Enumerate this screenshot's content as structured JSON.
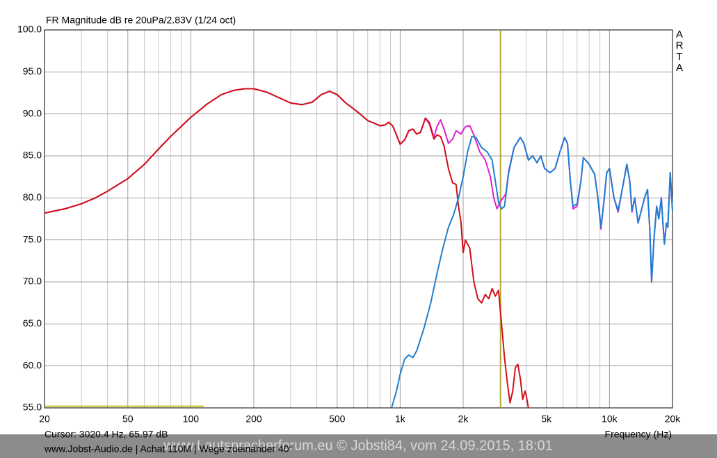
{
  "chart_data": {
    "type": "line",
    "title": "FR Magnitude dB re 20uPa/2.83V (1/24 oct)",
    "brand": "ARTA",
    "x_label": "Frequency (Hz)",
    "cursor": {
      "label": "Cursor: 3020.4 Hz, 65.97 dB",
      "x": 3020.4,
      "color": "#b0a020"
    },
    "footer": "www.Jobst-Audio.de | Achat 110M | Wege zueinander 40°",
    "watermark": "www.Lautsprecherforum.eu © Jobsti84, vom 24.09.2015, 18:01",
    "level_marker": {
      "x": [
        20,
        115
      ],
      "y": 55.2,
      "color": "#c8c020"
    },
    "xscale": "log",
    "grid": true,
    "xlim": [
      20,
      20000
    ],
    "ylim": [
      55,
      100
    ],
    "xticks": [
      20,
      50,
      100,
      200,
      500,
      {
        "value": 1000,
        "label": "1k"
      },
      {
        "value": 2000,
        "label": "2k"
      },
      {
        "value": 5000,
        "label": "5k"
      },
      {
        "value": 10000,
        "label": "10k"
      },
      {
        "value": 20000,
        "label": "20k"
      }
    ],
    "xminor": [
      30,
      40,
      60,
      70,
      80,
      90,
      300,
      400,
      600,
      700,
      800,
      900,
      3000,
      4000,
      6000,
      7000,
      8000,
      9000
    ],
    "yticks": [
      {
        "value": 100,
        "label": "100.0"
      },
      {
        "value": 95,
        "label": "95.0"
      },
      {
        "value": 90,
        "label": "90.0"
      },
      {
        "value": 85,
        "label": "85.0"
      },
      {
        "value": 80,
        "label": "80.0"
      },
      {
        "value": 75,
        "label": "75.0"
      },
      {
        "value": 70,
        "label": "70.0"
      },
      {
        "value": 65,
        "label": "65.0"
      },
      {
        "value": 60,
        "label": "60.0"
      },
      {
        "value": 55,
        "label": "55.0"
      }
    ],
    "series": [
      {
        "color": "#e020d0",
        "x": [
          20,
          25,
          30,
          35,
          40,
          50,
          60,
          70,
          80,
          100,
          120,
          140,
          160,
          180,
          200,
          230,
          260,
          300,
          340,
          380,
          420,
          460,
          500,
          550,
          600,
          650,
          700,
          750,
          800,
          850,
          880,
          920,
          960,
          1000,
          1050,
          1100,
          1150,
          1200,
          1250,
          1320,
          1380,
          1450,
          1500,
          1560,
          1620,
          1700,
          1780,
          1850,
          1950,
          2050,
          2150,
          2250,
          2400,
          2550,
          2700,
          2800,
          2900,
          3000,
          3100,
          3200,
          3300,
          3500,
          3750,
          3900,
          4100,
          4300,
          4500,
          4700,
          4900,
          5200,
          5500,
          5800,
          6100,
          6300,
          6500,
          6700,
          7000,
          7300,
          7500,
          8000,
          8500,
          8800,
          9100,
          9400,
          9700,
          10000,
          10500,
          11000,
          11500,
          12100,
          12500,
          12800,
          13200,
          13700,
          14200,
          14700,
          15200,
          15600,
          15900,
          16300,
          16800,
          17200,
          17700,
          18000,
          18300,
          18700,
          19000,
          19500,
          20000
        ],
        "values": [
          78.2,
          78.7,
          79.3,
          80.0,
          80.8,
          82.3,
          84.0,
          85.8,
          87.3,
          89.6,
          91.2,
          92.3,
          92.8,
          93.0,
          93.0,
          92.6,
          92.0,
          91.3,
          91.1,
          91.4,
          92.3,
          92.7,
          92.3,
          91.3,
          90.6,
          89.9,
          89.2,
          88.9,
          88.6,
          88.7,
          89.0,
          88.6,
          87.5,
          86.4,
          86.9,
          88.0,
          88.2,
          87.6,
          87.8,
          89.5,
          89.0,
          87.2,
          88.5,
          89.3,
          88.2,
          86.5,
          87.0,
          88.0,
          87.6,
          88.5,
          88.6,
          87.5,
          85.5,
          84.5,
          82.5,
          80.0,
          78.7,
          79.5,
          80.0,
          80.5,
          83.2,
          86.0,
          87.2,
          86.5,
          84.5,
          85.0,
          84.2,
          85.0,
          83.5,
          83.0,
          83.5,
          85.5,
          87.2,
          86.5,
          82.0,
          78.7,
          79.0,
          82.0,
          84.8,
          84.0,
          82.8,
          80.0,
          76.3,
          79.5,
          83.0,
          83.5,
          80.0,
          78.3,
          81.0,
          84.0,
          82.0,
          78.3,
          80.0,
          77.0,
          78.5,
          80.0,
          81.0,
          76.0,
          70.0,
          75.0,
          79.0,
          77.5,
          80.0,
          77.0,
          74.5,
          77.0,
          76.5,
          83.0,
          78.5
        ]
      },
      {
        "color": "#d0101a",
        "x": [
          20,
          25,
          30,
          35,
          40,
          50,
          60,
          70,
          80,
          100,
          120,
          140,
          160,
          180,
          200,
          230,
          260,
          300,
          340,
          380,
          420,
          460,
          500,
          550,
          600,
          650,
          700,
          750,
          800,
          850,
          880,
          920,
          960,
          1000,
          1050,
          1100,
          1150,
          1200,
          1250,
          1320,
          1380,
          1450,
          1500,
          1560,
          1620,
          1700,
          1780,
          1850,
          1900,
          1950,
          2000,
          2050,
          2150,
          2250,
          2350,
          2450,
          2550,
          2650,
          2750,
          2850,
          2950,
          3050,
          3150,
          3250,
          3350,
          3450,
          3550,
          3650,
          3750,
          3850,
          3950,
          4000,
          4100
        ],
        "values": [
          78.2,
          78.7,
          79.3,
          80.0,
          80.8,
          82.3,
          84.0,
          85.8,
          87.3,
          89.6,
          91.2,
          92.3,
          92.8,
          93.0,
          93.0,
          92.6,
          92.0,
          91.3,
          91.1,
          91.4,
          92.3,
          92.7,
          92.3,
          91.3,
          90.6,
          89.9,
          89.2,
          88.9,
          88.6,
          88.7,
          89.0,
          88.6,
          87.5,
          86.4,
          86.9,
          88.0,
          88.2,
          87.6,
          87.8,
          89.5,
          88.8,
          87.0,
          87.5,
          87.3,
          86.2,
          83.5,
          81.8,
          81.6,
          79.0,
          77.2,
          73.5,
          75.0,
          74.0,
          70.0,
          68.0,
          67.5,
          68.5,
          68.0,
          69.2,
          68.3,
          69.0,
          65.0,
          61.0,
          58.0,
          55.6,
          57.0,
          59.8,
          60.2,
          58.5,
          56.0,
          57.0,
          56.5,
          55.0
        ]
      },
      {
        "color": "#1f7fd0",
        "x": [
          910,
          960,
          1000,
          1050,
          1100,
          1150,
          1200,
          1300,
          1400,
          1500,
          1600,
          1700,
          1800,
          1900,
          2000,
          2100,
          2200,
          2300,
          2450,
          2600,
          2750,
          2850,
          2950,
          3050,
          3150,
          3300,
          3500,
          3750,
          3900,
          4100,
          4300,
          4500,
          4700,
          4900,
          5200,
          5500,
          5800,
          6100,
          6300,
          6500,
          6700,
          7000,
          7300,
          7500,
          8000,
          8500,
          8800,
          9100,
          9400,
          9700,
          10000,
          10500,
          11000,
          11500,
          12100,
          12500,
          12800,
          13200,
          13700,
          14200,
          14700,
          15200,
          15600,
          15900,
          16300,
          16800,
          17200,
          17700,
          18000,
          18300,
          18700,
          19000,
          19500,
          20000
        ],
        "values": [
          55.0,
          57.0,
          59.0,
          60.8,
          61.3,
          61.0,
          61.8,
          64.5,
          67.5,
          71.0,
          74.0,
          76.5,
          78.0,
          80.0,
          82.5,
          85.5,
          87.3,
          87.2,
          86.0,
          85.5,
          84.5,
          82.0,
          79.5,
          78.7,
          79.0,
          83.0,
          86.0,
          87.2,
          86.5,
          84.5,
          85.0,
          84.2,
          85.0,
          83.5,
          83.0,
          83.5,
          85.5,
          87.2,
          86.5,
          82.0,
          79.0,
          79.3,
          82.0,
          84.8,
          84.0,
          82.8,
          80.0,
          76.5,
          79.5,
          83.0,
          83.5,
          80.0,
          78.5,
          81.0,
          84.0,
          82.0,
          78.5,
          80.0,
          77.0,
          78.5,
          80.0,
          81.0,
          76.0,
          70.0,
          75.0,
          79.0,
          77.5,
          80.0,
          77.0,
          74.5,
          77.0,
          76.5,
          83.0,
          78.5
        ]
      }
    ]
  }
}
